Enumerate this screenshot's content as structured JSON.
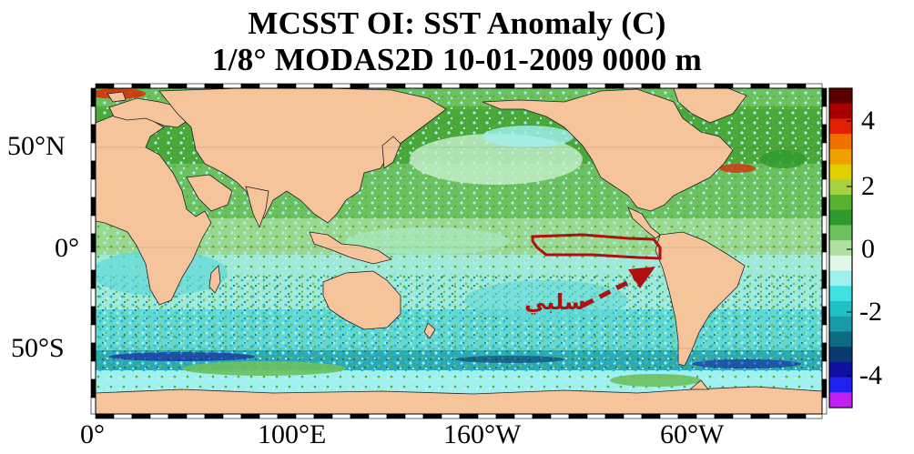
{
  "title": {
    "line1": "MCSST OI:  SST Anomaly (C)",
    "line2": "1/8° MODAS2D 10-01-2009 0000 m"
  },
  "map": {
    "lat_labels": [
      "50°N",
      "0°",
      "50°S"
    ],
    "lon_labels": [
      "0°",
      "100°E",
      "160°W",
      "60°W"
    ],
    "annotation": "سلبي",
    "annotation_color": "#b01010",
    "land_color": "#f5c49a"
  },
  "colorbar": {
    "ticks": [
      "4",
      "2",
      "0",
      "-2",
      "-4"
    ],
    "colors": [
      "#5a0000",
      "#a80000",
      "#e02000",
      "#f07000",
      "#f0a000",
      "#e0d000",
      "#a8d040",
      "#58b030",
      "#2e9a2e",
      "#6cc060",
      "#b0e0a0",
      "#e0f8e8",
      "#a0f0f0",
      "#40e0e0",
      "#20c0c8",
      "#189aa8",
      "#0e6a80",
      "#0a3a70",
      "#1010a0",
      "#2020f0",
      "#c020f0"
    ]
  }
}
